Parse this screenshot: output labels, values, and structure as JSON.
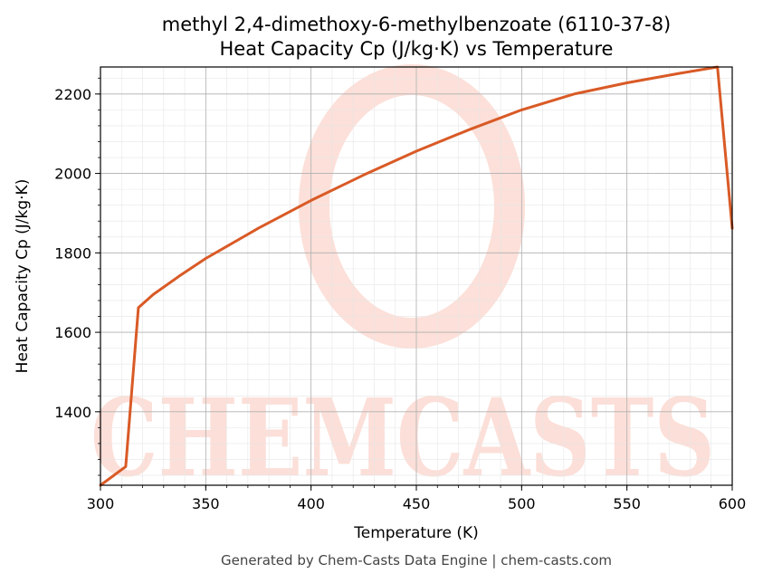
{
  "chart_data": {
    "type": "line",
    "title": "methyl 2,4-dimethoxy-6-methylbenzoate (6110-37-8)",
    "subtitle": "Heat Capacity Cp (J/kg·K) vs Temperature",
    "xlabel": "Temperature (K)",
    "ylabel": "Heat Capacity Cp (J/kg·K)",
    "xlim": [
      300,
      600
    ],
    "ylim": [
      1215,
      2268
    ],
    "x_ticks": [
      300,
      350,
      400,
      450,
      500,
      550,
      600
    ],
    "y_ticks": [
      1400,
      1600,
      1800,
      2000,
      2200
    ],
    "grid": true,
    "series": [
      {
        "color": "#d95a26",
        "x": [
          300,
          312,
          318,
          325,
          337.5,
          350,
          375,
          400,
          425,
          450,
          475,
          500,
          525,
          550,
          575,
          593,
          600
        ],
        "y": [
          1215,
          1262,
          1662,
          1695,
          1742,
          1786,
          1862,
          1932,
          1996,
          2056,
          2110,
          2160,
          2200,
          2228,
          2252,
          2268,
          1862
        ]
      }
    ],
    "watermark": "CHEMCASTS",
    "watermark_color": "#fbd5cc"
  },
  "footer": "Generated by Chem-Casts Data Engine | chem-casts.com"
}
